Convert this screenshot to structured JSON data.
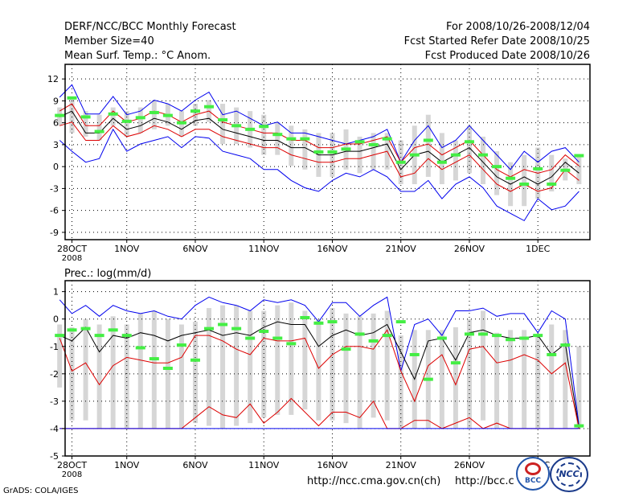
{
  "header": {
    "title": "DERF/NCC/BCC Monthly Forecast",
    "member_size": "Member Size=40",
    "variable": "Mean Surf. Temp.: °C Anom.",
    "period": "For 2008/10/26-2008/12/04",
    "refer_date": "Fcst Started Refer Date 2008/10/25",
    "produced_date": "Fcst Produced Date 2008/10/26"
  },
  "footer": {
    "url1": "http://ncc.cma.gov.cn(ch)",
    "url2": "http://bcc.c",
    "grads": "GrADS: COLA/IGES",
    "logo1_text": "BCC",
    "logo2_text": "NCC"
  },
  "colors": {
    "blue": "#0000ee",
    "red": "#dd0000",
    "black": "#000000",
    "green": "#44ee44",
    "gray": "#d6d6d6"
  },
  "chart_data": [
    {
      "type": "line",
      "title": "Mean Surf. Temp.: °C Anom.",
      "ylim": [
        -10,
        14
      ],
      "yticks": [
        12,
        9,
        6,
        3,
        0,
        -3,
        -6,
        -9
      ],
      "x_ticks": [
        {
          "day": 0,
          "label": "28OCT",
          "sub": "2008"
        },
        {
          "day": 4,
          "label": "1NOV"
        },
        {
          "day": 9,
          "label": "6NOV"
        },
        {
          "day": 14,
          "label": "11NOV"
        },
        {
          "day": 19,
          "label": "16NOV"
        },
        {
          "day": 24,
          "label": "21NOV"
        },
        {
          "day": 29,
          "label": "26NOV"
        },
        {
          "day": 34,
          "label": "1DEC"
        }
      ],
      "x_range": [
        -0.5,
        37.8
      ],
      "days": [
        -0.9,
        0,
        1,
        2,
        3,
        4,
        5,
        6,
        7,
        8,
        9,
        10,
        11,
        12,
        13,
        14,
        15,
        16,
        17,
        18,
        19,
        20,
        21,
        22,
        23,
        24,
        25,
        26,
        27,
        28,
        29,
        30,
        31,
        32,
        33,
        34,
        35,
        36,
        37
      ],
      "series": [
        {
          "name": "max",
          "color": "blue",
          "values": [
            9.5,
            11.2,
            7.2,
            7.2,
            9.6,
            7.1,
            7.6,
            9.1,
            8.6,
            7.6,
            9.1,
            10.2,
            7.1,
            7.6,
            6.6,
            5.6,
            6.1,
            4.6,
            4.6,
            4.1,
            3.6,
            3.1,
            3.6,
            4.1,
            5.1,
            0.6,
            3.6,
            5.6,
            2.6,
            3.6,
            5.6,
            3.6,
            1.6,
            -0.4,
            2.1,
            0.6,
            2.1,
            2.6,
            0.6
          ]
        },
        {
          "name": "upper",
          "color": "red",
          "values": [
            7.6,
            8.6,
            5.6,
            5.6,
            7.6,
            6.1,
            6.6,
            7.6,
            7.1,
            6.1,
            7.1,
            7.6,
            6.1,
            5.6,
            5.1,
            4.6,
            4.6,
            3.6,
            3.6,
            2.6,
            2.6,
            3.1,
            3.1,
            3.6,
            4.1,
            0.6,
            2.6,
            3.1,
            1.6,
            2.6,
            3.6,
            1.6,
            -0.4,
            -1.4,
            -0.4,
            -0.9,
            -0.4,
            1.6,
            0.1
          ]
        },
        {
          "name": "mean",
          "color": "black",
          "values": [
            6.8,
            7.6,
            4.6,
            4.6,
            6.6,
            5.1,
            5.6,
            6.6,
            6.1,
            5.1,
            6.3,
            6.6,
            5.1,
            4.6,
            4.1,
            3.6,
            3.6,
            2.6,
            2.6,
            1.6,
            1.6,
            2.1,
            2.1,
            2.6,
            3.1,
            -0.4,
            1.6,
            2.1,
            0.6,
            1.6,
            2.6,
            0.6,
            -1.4,
            -2.4,
            -1.4,
            -2.4,
            -1.4,
            0.6,
            -0.9
          ]
        },
        {
          "name": "lower",
          "color": "red",
          "values": [
            5.6,
            6.1,
            3.6,
            3.6,
            5.6,
            4.1,
            4.6,
            5.6,
            5.1,
            4.1,
            5.1,
            5.1,
            4.1,
            3.6,
            3.1,
            2.6,
            2.6,
            1.6,
            1.1,
            0.6,
            0.6,
            1.1,
            1.1,
            1.6,
            2.1,
            -1.4,
            -0.9,
            1.1,
            -0.4,
            0.6,
            1.6,
            -0.4,
            -2.4,
            -3.4,
            -2.4,
            -3.4,
            -2.9,
            -0.4,
            -1.9
          ]
        },
        {
          "name": "min",
          "color": "blue",
          "values": [
            3.6,
            2.1,
            0.6,
            1.1,
            5.1,
            2.1,
            3.1,
            3.6,
            4.1,
            2.6,
            4.1,
            3.9,
            2.1,
            1.6,
            1.1,
            -0.4,
            -0.4,
            -1.9,
            -2.9,
            -3.4,
            -1.9,
            -0.9,
            -1.4,
            -0.4,
            -1.4,
            -3.4,
            -3.4,
            -1.9,
            -4.4,
            -2.4,
            -1.4,
            -2.9,
            -5.4,
            -6.4,
            -7.4,
            -4.4,
            -5.9,
            -5.4,
            -3.4
          ]
        }
      ],
      "box_top": [
        8.1,
        9.6,
        7.6,
        7.1,
        8.1,
        7.6,
        8.1,
        9.1,
        8.6,
        7.6,
        8.6,
        9.1,
        8.6,
        8.1,
        7.6,
        7.1,
        6.1,
        5.6,
        5.1,
        4.6,
        4.6,
        5.1,
        4.1,
        4.6,
        4.6,
        3.6,
        5.6,
        7.1,
        4.6,
        3.6,
        5.6,
        4.1,
        2.1,
        0.6,
        1.6,
        2.6,
        1.6,
        1.1,
        1.6
      ],
      "box_bottom": [
        5.6,
        4.6,
        4.1,
        3.6,
        5.6,
        4.1,
        4.6,
        5.1,
        5.6,
        4.1,
        5.6,
        6.1,
        3.1,
        3.1,
        2.6,
        1.6,
        1.6,
        0.1,
        -0.4,
        -1.4,
        -1.4,
        -0.4,
        -0.9,
        -0.4,
        -0.4,
        -2.4,
        -2.4,
        -1.4,
        -2.4,
        -1.9,
        -0.9,
        -2.4,
        -3.9,
        -5.4,
        -5.4,
        -4.4,
        -3.4,
        -1.9,
        -2.4
      ],
      "green_marks": [
        7.0,
        9.4,
        6.8,
        4.8,
        7.2,
        6.2,
        6.7,
        7.4,
        7.0,
        6.0,
        7.6,
        8.2,
        6.4,
        5.6,
        5.1,
        5.5,
        4.4,
        3.8,
        3.8,
        2.0,
        2.0,
        2.4,
        3.4,
        3.0,
        3.8,
        0.6,
        1.6,
        3.6,
        0.6,
        1.6,
        3.4,
        1.6,
        0.0,
        -1.6,
        -2.4,
        -0.3,
        -2.4,
        -0.5,
        1.5
      ]
    },
    {
      "type": "line",
      "title": "Prec.: log(mm/d)",
      "ylim": [
        -5,
        1.4
      ],
      "yticks": [
        1,
        0,
        -1,
        -2,
        -3,
        -4,
        -5
      ],
      "x_ticks": [
        {
          "day": 0,
          "label": "28OCT",
          "sub": "2008"
        },
        {
          "day": 4,
          "label": "1NOV"
        },
        {
          "day": 9,
          "label": "6NOV"
        },
        {
          "day": 14,
          "label": "11NOV"
        },
        {
          "day": 19,
          "label": "16NOV"
        },
        {
          "day": 24,
          "label": "21NOV"
        },
        {
          "day": 29,
          "label": "26NOV"
        },
        {
          "day": 34,
          "label": "1DEC"
        }
      ],
      "x_range": [
        -0.5,
        37.8
      ],
      "days": [
        -0.9,
        0,
        1,
        2,
        3,
        4,
        5,
        6,
        7,
        8,
        9,
        10,
        11,
        12,
        13,
        14,
        15,
        16,
        17,
        18,
        19,
        20,
        21,
        22,
        23,
        24,
        25,
        26,
        27,
        28,
        29,
        30,
        31,
        32,
        33,
        34,
        35,
        36,
        37
      ],
      "series": [
        {
          "name": "max",
          "color": "blue",
          "values": [
            0.7,
            0.2,
            0.5,
            0.1,
            0.5,
            0.3,
            0.2,
            0.3,
            0.1,
            0.0,
            0.5,
            0.8,
            0.6,
            0.5,
            0.3,
            0.7,
            0.6,
            0.7,
            0.5,
            -0.1,
            0.6,
            0.6,
            0.1,
            0.5,
            0.8,
            -1.9,
            -0.2,
            0.0,
            -0.6,
            0.3,
            0.3,
            0.4,
            0.1,
            0.2,
            0.2,
            -0.5,
            0.3,
            0.0,
            -3.9
          ]
        },
        {
          "name": "upper",
          "color": "black",
          "values": [
            -0.6,
            -0.8,
            -0.3,
            -1.2,
            -0.6,
            -0.7,
            -0.5,
            -0.6,
            -0.8,
            -0.6,
            -0.5,
            -0.4,
            -0.6,
            -0.5,
            -0.6,
            -0.3,
            -0.1,
            -0.2,
            -0.2,
            -1.0,
            -0.6,
            -0.4,
            -0.6,
            -0.5,
            -0.2,
            -1.2,
            -2.2,
            -0.8,
            -0.7,
            -1.5,
            -0.5,
            -0.4,
            -0.6,
            -0.7,
            -0.7,
            -0.6,
            -1.3,
            -0.9,
            -4.0
          ]
        },
        {
          "name": "mean",
          "color": "red",
          "values": [
            -0.7,
            -1.9,
            -1.6,
            -2.4,
            -1.7,
            -1.4,
            -1.5,
            -1.6,
            -1.6,
            -1.4,
            -0.6,
            -0.6,
            -0.8,
            -1.1,
            -1.3,
            -0.7,
            -0.8,
            -0.8,
            -0.7,
            -1.8,
            -1.3,
            -1.0,
            -1.0,
            -1.1,
            -0.4,
            -1.9,
            -3.0,
            -1.7,
            -1.3,
            -2.4,
            -1.1,
            -1.0,
            -1.6,
            -1.5,
            -1.3,
            -1.5,
            -2.0,
            -1.6,
            -4.0
          ]
        },
        {
          "name": "lower",
          "color": "red",
          "values": [
            -4.0,
            -4.0,
            -4.0,
            -4.0,
            -4.0,
            -4.0,
            -4.0,
            -4.0,
            -4.0,
            -4.0,
            -3.6,
            -3.2,
            -3.5,
            -3.6,
            -3.1,
            -3.8,
            -3.4,
            -2.9,
            -3.4,
            -3.9,
            -3.4,
            -3.4,
            -3.6,
            -3.0,
            -4.0,
            -4.0,
            -3.7,
            -3.7,
            -4.0,
            -3.8,
            -3.6,
            -4.0,
            -3.8,
            -4.0,
            -4.0,
            -4.0,
            -4.0,
            -4.0,
            -4.0
          ]
        },
        {
          "name": "min",
          "color": "blue",
          "values": [
            -4.0,
            -4.0,
            -4.0,
            -4.0,
            -4.0,
            -4.0,
            -4.0,
            -4.0,
            -4.0,
            -4.0,
            -4.0,
            -4.0,
            -4.0,
            -4.0,
            -4.0,
            -4.0,
            -4.0,
            -4.0,
            -4.0,
            -4.0,
            -4.0,
            -4.0,
            -4.0,
            -4.0,
            -4.0,
            -4.0,
            -4.0,
            -4.0,
            -4.0,
            -4.0,
            -4.0,
            -4.0,
            -4.0,
            -4.0,
            -4.0,
            -4.0,
            -4.0,
            -4.0,
            -4.0
          ]
        }
      ],
      "box_top": [
        -0.2,
        -0.3,
        0.0,
        -0.2,
        0.1,
        -0.2,
        0.2,
        0.3,
        0.0,
        -0.2,
        -0.1,
        0.4,
        0.5,
        0.5,
        0.3,
        0.3,
        0.5,
        0.6,
        0.3,
        0.0,
        0.4,
        0.2,
        0.1,
        0.2,
        0.3,
        -0.6,
        -0.4,
        -0.4,
        -0.4,
        -0.3,
        0.0,
        0.3,
        -0.5,
        -0.4,
        -0.4,
        -0.6,
        -0.2,
        -0.4,
        -1.0
      ],
      "box_bottom": [
        -2.5,
        -3.7,
        -3.7,
        -4.0,
        -4.0,
        -4.0,
        -4.0,
        -4.0,
        -4.0,
        -4.0,
        -3.8,
        -3.9,
        -4.0,
        -3.9,
        -3.8,
        -3.6,
        -3.5,
        -3.5,
        -3.3,
        -3.7,
        -3.7,
        -3.8,
        -4.0,
        -3.6,
        -3.7,
        -4.0,
        -4.0,
        -4.0,
        -4.0,
        -4.0,
        -4.0,
        -3.7,
        -4.0,
        -4.0,
        -4.0,
        -4.0,
        -4.0,
        -4.0,
        -4.0
      ],
      "green_marks": [
        -0.6,
        -0.4,
        -0.35,
        -0.6,
        -0.4,
        -0.6,
        -1.05,
        -1.45,
        -1.8,
        -0.95,
        -1.5,
        -0.35,
        -0.2,
        -0.35,
        -0.7,
        -0.45,
        -0.7,
        -0.9,
        0.05,
        -0.15,
        -0.1,
        -1.1,
        -0.55,
        -0.8,
        -0.6,
        -0.1,
        -1.3,
        -2.2,
        -0.7,
        -1.6,
        -0.55,
        -0.55,
        -0.6,
        -0.75,
        -0.7,
        -0.6,
        -1.3,
        -0.95,
        -3.9
      ]
    }
  ]
}
